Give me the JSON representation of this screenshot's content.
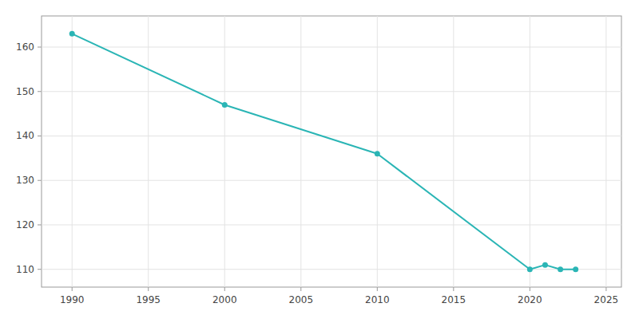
{
  "chart_data": {
    "type": "line",
    "x": [
      1990,
      2000,
      2010,
      2020,
      2021,
      2022,
      2023
    ],
    "values": [
      163,
      147,
      136,
      110,
      111,
      110,
      110
    ],
    "color": "#2ab5b5",
    "marker": "circle",
    "xlim": [
      1988,
      2026
    ],
    "ylim": [
      106,
      167
    ],
    "xticks": [
      1990,
      1995,
      2000,
      2005,
      2010,
      2015,
      2020,
      2025
    ],
    "yticks": [
      110,
      120,
      130,
      140,
      150,
      160
    ],
    "grid": true
  }
}
